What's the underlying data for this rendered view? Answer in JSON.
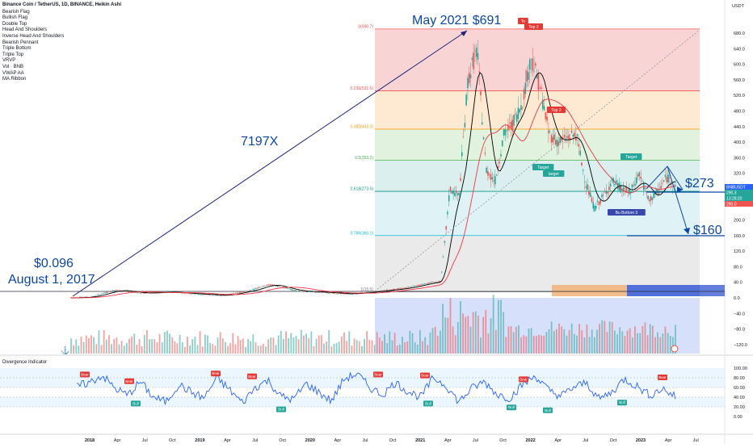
{
  "symbol_title": "Binance Coin / TetherUS, 1D, BINANCE, Heikin Ashi",
  "indicators": [
    "Bearish Flag",
    "Bullish Flag",
    "Double Top",
    "Head And Shoulders",
    "Inverse Head And Shoulders",
    "Bearish Pennant",
    "Triple Bottom",
    "Triple Top",
    "VRVP",
    "Vol · BNB",
    "VWAP AA",
    "MA Ribbon"
  ],
  "currency": "USDT",
  "oscillator_title": "Divergence Indicator",
  "annotations": {
    "peak": "May 2021 $691",
    "multiplier": "7197X",
    "start_price": "$0.096",
    "start_date": "August 1, 2017",
    "level_273": "$273",
    "level_160": "$160"
  },
  "price_tags": {
    "last": "BNBUSDT",
    "price": "290.3",
    "countdown": "13:28:20",
    "secondary": "290.0"
  },
  "fib_levels": [
    {
      "label": "0(690.7)",
      "value": 690.7,
      "color": "#ef5350"
    },
    {
      "label": "0.236(531.6)",
      "value": 531.6,
      "color": "#ef5350"
    },
    {
      "label": "0.382(433.3)",
      "value": 433.3,
      "color": "#ff9800"
    },
    {
      "label": "0.5(353.2)",
      "value": 353.2,
      "color": "#4caf50"
    },
    {
      "label": "0.618(273.5)",
      "value": 273.5,
      "color": "#089981"
    },
    {
      "label": "0.786(160.1)",
      "value": 160.1,
      "color": "#00bcd4"
    },
    {
      "label": "1(15.5)",
      "value": 15.5,
      "color": "#787b86"
    }
  ],
  "pattern_labels": [
    "To",
    "Top 2",
    "Top 2",
    "Target",
    "target",
    "Target",
    "Bu  Bottom 3"
  ],
  "osc_tags": [
    "Bear",
    "Bull"
  ],
  "colors": {
    "up": "#26a69a",
    "down": "#ef5350",
    "line": "#2962ff",
    "wedge": "#0d47a1",
    "ma_fast": "#000000",
    "ma_slow": "#f23645"
  },
  "chart_data": {
    "type": "line",
    "title": "Binance Coin / TetherUS, 1D, BINANCE, Heikin Ashi",
    "price_axis_ticks": [
      680,
      640,
      600,
      560,
      520,
      480,
      440,
      400,
      360,
      320,
      280,
      240,
      200,
      160,
      120,
      80,
      40,
      0,
      -40,
      -80,
      -120
    ],
    "price_axis_labels": [
      "680.0",
      "640.0",
      "600.0",
      "560.0",
      "520.0",
      "480.0",
      "440.0",
      "400.0",
      "360.0",
      "320.0",
      "280.0",
      "240.0",
      "200.0",
      "160.0",
      "120.0",
      "80.0",
      "40.0",
      "0.0",
      "−40.0",
      "−80.0",
      "−120.0"
    ],
    "osc_axis_ticks": [
      100,
      80,
      60,
      40,
      20,
      0
    ],
    "osc_axis_labels": [
      "100.00",
      "80.00",
      "60.00",
      "40.00",
      "20.00",
      "0.00"
    ],
    "time_labels": [
      "2018",
      "Apr",
      "Jul",
      "Oct",
      "2019",
      "Apr",
      "Jul",
      "Oct",
      "2020",
      "Apr",
      "Jul",
      "Oct",
      "2021",
      "Apr",
      "Jul",
      "Oct",
      "2022",
      "Apr",
      "Jul",
      "Oct",
      "2023",
      "Apr",
      "Jul"
    ],
    "ylim": [
      -150,
      720
    ],
    "series": [
      {
        "x": [
          "2017-08",
          "2017-10",
          "2018-01",
          "2018-04",
          "2018-07",
          "2018-10",
          "2019-01",
          "2019-04",
          "2019-06",
          "2019-09",
          "2019-12",
          "2020-03",
          "2020-06",
          "2020-09",
          "2020-12",
          "2021-01",
          "2021-02",
          "2021-03",
          "2021-04",
          "2021-05",
          "2021-06",
          "2021-07",
          "2021-08",
          "2021-09",
          "2021-10",
          "2021-11",
          "2021-12",
          "2022-01",
          "2022-02",
          "2022-03",
          "2022-04",
          "2022-05",
          "2022-06",
          "2022-07",
          "2022-08",
          "2022-09",
          "2022-10",
          "2022-11",
          "2022-12",
          "2023-01",
          "2023-02",
          "2023-03"
        ],
        "values": [
          0.1,
          2,
          20,
          12,
          15,
          10,
          6,
          20,
          35,
          18,
          14,
          10,
          17,
          25,
          40,
          42,
          280,
          260,
          560,
          640,
          330,
          300,
          420,
          450,
          500,
          620,
          540,
          420,
          400,
          410,
          420,
          300,
          230,
          260,
          300,
          280,
          270,
          320,
          250,
          270,
          310,
          290
        ]
      }
    ],
    "osc_values": [
      62,
      70,
      85,
      58,
      44,
      72,
      40,
      30,
      66,
      50,
      38,
      80,
      55,
      28,
      60,
      75,
      42,
      35,
      68,
      50,
      32,
      78,
      88,
      60,
      45,
      70,
      52,
      40,
      80,
      64,
      30,
      58,
      72,
      46,
      38,
      66,
      84,
      55,
      42,
      60,
      70,
      36,
      50,
      78,
      62,
      44,
      58,
      40
    ]
  }
}
